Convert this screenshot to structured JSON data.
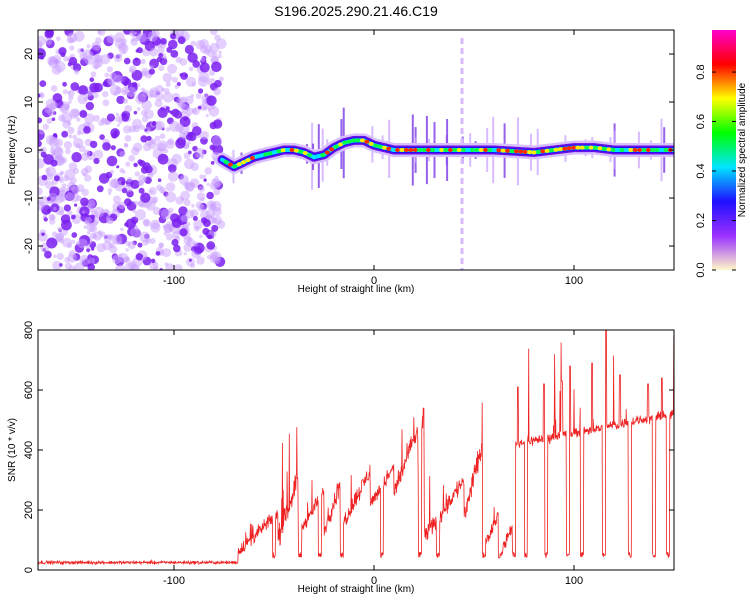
{
  "title": "S196.2025.290.21.46.C19",
  "chart_data": [
    {
      "type": "heatmap",
      "name": "spectrogram",
      "xlabel": "Height of straight line (km)",
      "ylabel": "Frequency (Hz)",
      "xlim": [
        -168,
        150
      ],
      "ylim": [
        -25,
        25
      ],
      "xticks": [
        -100,
        0,
        100
      ],
      "xtick_labels": [
        "-100",
        "0",
        "100"
      ],
      "yticks": [
        -20,
        -10,
        0,
        10,
        20
      ],
      "ytick_labels": [
        "-20",
        "-10",
        "0",
        "10",
        "20"
      ],
      "noise_region_x": [
        -168,
        -76
      ],
      "ridge_x": [
        -76,
        -70,
        -65,
        -60,
        -55,
        -50,
        -45,
        -40,
        -35,
        -30,
        -25,
        -20,
        -15,
        -10,
        -5,
        0,
        10,
        20,
        40,
        60,
        80,
        90,
        100,
        110,
        120,
        130,
        140,
        150
      ],
      "ridge_freq": [
        -2.0,
        -3.5,
        -2.5,
        -1.5,
        -1.0,
        -0.5,
        0.0,
        0.0,
        -0.5,
        -1.5,
        -1.0,
        0.5,
        1.5,
        2.0,
        2.0,
        1.0,
        0.0,
        0.0,
        0.0,
        0.0,
        -0.5,
        0.0,
        0.5,
        0.5,
        0.0,
        0.0,
        0.0,
        0.0
      ],
      "colorbar": {
        "label": "Normalized spectral amplitude",
        "range": [
          0,
          0.97
        ],
        "ticks": [
          0.0,
          0.2,
          0.4,
          0.6,
          0.8
        ],
        "tick_labels": [
          "0.0",
          "0.2",
          "0.4",
          "0.6",
          "0.8"
        ],
        "colors": [
          "#fff8c8",
          "#9b30ff",
          "#1f10ff",
          "#00e5ff",
          "#00ff00",
          "#ffff00",
          "#ff0000",
          "#ff00cc"
        ]
      }
    },
    {
      "type": "line",
      "name": "snr",
      "xlabel": "Height of straight line (km)",
      "ylabel": "SNR (10 * v/v)",
      "xlim": [
        -168,
        150
      ],
      "ylim": [
        0,
        800
      ],
      "xticks": [
        -100,
        0,
        100
      ],
      "xtick_labels": [
        "-100",
        "0",
        "100"
      ],
      "yticks": [
        0,
        200,
        400,
        600,
        800
      ],
      "ytick_labels": [
        "0",
        "200",
        "400",
        "600",
        "800"
      ],
      "color": "#ee2222",
      "baseline_segment": {
        "x": [
          -168,
          -68
        ],
        "value": 25
      },
      "segments": [
        {
          "x": [
            -68,
            -48
          ],
          "low": 60,
          "high": 190,
          "peak": 180
        },
        {
          "x": [
            -48,
            -38
          ],
          "low": 100,
          "high": 310,
          "peak": 460
        },
        {
          "x": [
            -38,
            -25
          ],
          "low": 120,
          "high": 260,
          "peak": 290
        },
        {
          "x": [
            -25,
            -16
          ],
          "low": 130,
          "high": 300,
          "peak": 330
        },
        {
          "x": [
            -16,
            -2
          ],
          "low": 150,
          "high": 330,
          "peak": 360
        },
        {
          "x": [
            -2,
            10
          ],
          "low": 220,
          "high": 340,
          "peak": 350
        },
        {
          "x": [
            10,
            22
          ],
          "low": 260,
          "high": 470,
          "peak": 560
        },
        {
          "x": [
            22,
            25
          ],
          "low": 300,
          "high": 560,
          "peak": 600
        },
        {
          "x": [
            25,
            45
          ],
          "low": 110,
          "high": 300,
          "peak": 320
        },
        {
          "x": [
            45,
            55
          ],
          "low": 180,
          "high": 430,
          "peak": 530
        },
        {
          "x": [
            55,
            63
          ],
          "low": 80,
          "high": 200,
          "peak": 220
        },
        {
          "x": [
            63,
            70
          ],
          "low": 50,
          "high": 160,
          "peak": 180
        },
        {
          "x": [
            70,
            150
          ],
          "low": 420,
          "high": 520,
          "peak": 800
        }
      ],
      "dips": [
        -50,
        -37,
        -27,
        -16,
        4,
        23,
        32,
        55,
        63,
        70,
        76,
        86,
        97,
        104,
        115,
        128,
        140,
        147
      ],
      "dip_value": 40,
      "peaks": [
        {
          "x": 72,
          "value": 610
        },
        {
          "x": 85,
          "value": 620
        },
        {
          "x": 94,
          "value": 630
        },
        {
          "x": 98,
          "value": 680
        },
        {
          "x": 109,
          "value": 690
        },
        {
          "x": 116,
          "value": 800
        },
        {
          "x": 123,
          "value": 650
        },
        {
          "x": 137,
          "value": 620
        },
        {
          "x": 144,
          "value": 640
        }
      ]
    }
  ]
}
